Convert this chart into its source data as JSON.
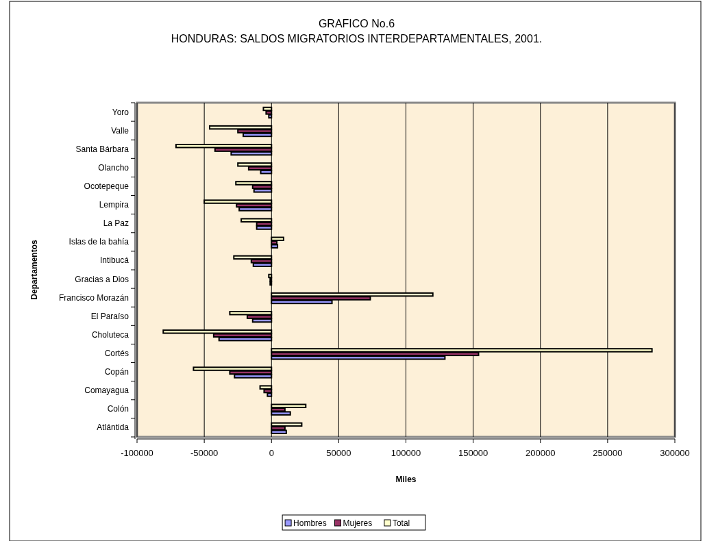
{
  "chart_data": {
    "type": "bar",
    "orientation": "horizontal",
    "title": "GRAFICO No.6",
    "subtitle": "HONDURAS: SALDOS MIGRATORIOS INTERDEPARTAMENTALES, 2001.",
    "xlabel": "Miles",
    "ylabel": "Departamentos",
    "categories": [
      "Yoro",
      "Valle",
      "Santa Bárbara",
      "Olancho",
      "Ocotepeque",
      "Lempira",
      "La Paz",
      "Islas de la bahía",
      "Intibucá",
      "Gracias a Dios",
      "Francisco Morazán",
      "El Paraíso",
      "Choluteca",
      "Cortés",
      "Copán",
      "Comayagua",
      "Colón",
      "Atlántida"
    ],
    "series": [
      {
        "name": "Hombres",
        "color": "#9999ff",
        "values": [
          -2000,
          -21000,
          -30000,
          -8000,
          -13000,
          -24000,
          -11000,
          4500,
          -13500,
          -1000,
          45000,
          -14000,
          -39000,
          129000,
          -27500,
          -3000,
          14000,
          11000
        ]
      },
      {
        "name": "Mujeres",
        "color": "#993366",
        "values": [
          -4000,
          -25000,
          -42000,
          -17000,
          -14000,
          -26000,
          -11000,
          4000,
          -15000,
          -1000,
          73500,
          -18000,
          -43000,
          154000,
          -31000,
          -5500,
          10000,
          10000
        ]
      },
      {
        "name": "Total",
        "color": "#ffffcc",
        "values": [
          -6000,
          -46000,
          -71000,
          -25000,
          -26500,
          -50000,
          -22500,
          9000,
          -28000,
          -2000,
          120000,
          -31000,
          -80500,
          283000,
          -58000,
          -8500,
          25500,
          22500
        ]
      }
    ],
    "xlim": [
      -100000,
      300000
    ],
    "xticks": [
      -100000,
      -50000,
      0,
      50000,
      100000,
      150000,
      200000,
      250000,
      300000
    ],
    "grid": "x",
    "legend": "bottom"
  }
}
